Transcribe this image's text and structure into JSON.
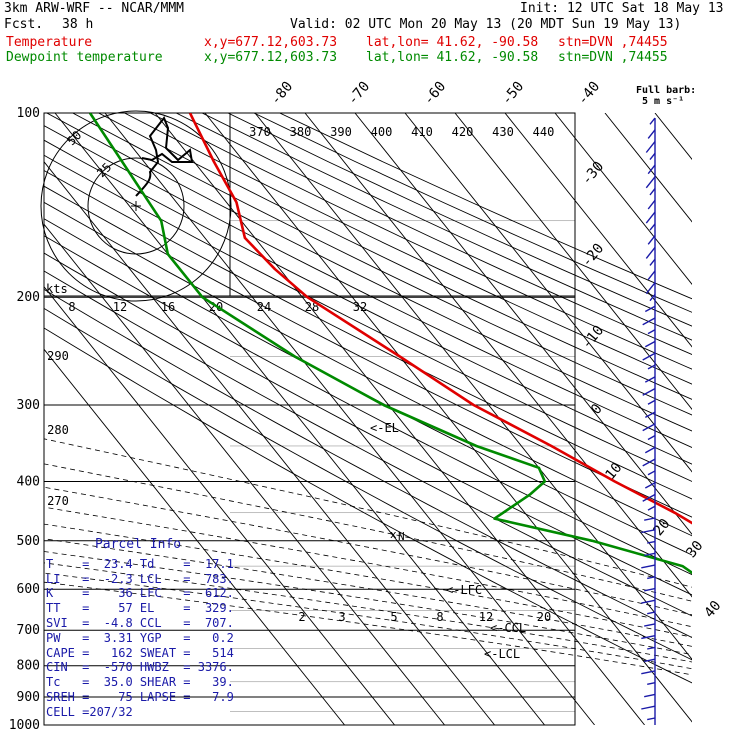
{
  "header": {
    "model": "3km ARW-WRF -- NCAR/MMM",
    "init": "Init: 12 UTC Sat 18 May 13",
    "fcst_label": "Fcst.",
    "fcst_value": "38 h",
    "valid": "Valid: 02 UTC Mon 20 May 13 (20 MDT Sun 19 May 13)",
    "temp_line": {
      "label": "Temperature",
      "xy": "x,y=677.12,603.73",
      "latlon": "lat,lon= 41.62, -90.58",
      "stn": "stn=DVN ,74455"
    },
    "dew_line": {
      "label": "Dewpoint temperature",
      "xy": "x,y=677.12,603.73",
      "latlon": "lat,lon= 41.62, -90.58",
      "stn": "stn=DVN ,74455"
    },
    "barb_key_1": "Full barb:",
    "barb_key_2": "5 m s⁻¹"
  },
  "colors": {
    "temperature": "#e00000",
    "dewpoint": "#008a00",
    "winds": "#1a1aa8",
    "parcel_panel": "#1a1aa8",
    "grid": "#000000"
  },
  "chart_data": {
    "type": "line",
    "ylabel": "",
    "xlabel": "",
    "y_scale": "log",
    "pressure_levels": [
      100,
      200,
      300,
      400,
      500,
      600,
      700,
      800,
      900,
      1000
    ],
    "isotherm_labels": [
      "-80",
      "-70",
      "-60",
      "-50",
      "-40",
      "-30",
      "-20",
      "-10",
      "0",
      "10",
      "20",
      "30",
      "40"
    ],
    "theta_top_labels": [
      "370",
      "380",
      "390",
      "400",
      "410",
      "420",
      "430",
      "440"
    ],
    "theta_left_labels": [
      "290",
      "280",
      "270"
    ],
    "mixing_ratio_labels": [
      "2",
      "3",
      "5",
      "8",
      "12",
      "20"
    ],
    "hodo_speed_labels": [
      "8",
      "12",
      "16",
      "20",
      "24",
      "28",
      "32"
    ],
    "hodo_ring_labels": [
      "50",
      "25"
    ],
    "hodo_unit": "kts",
    "level_markers": [
      "<-EL",
      "<-LFC",
      "<-CCL",
      "<-LCL"
    ],
    "series": [
      {
        "name": "Temperature",
        "color": "#e00000",
        "points": [
          [
            100,
            -53
          ],
          [
            120,
            -56
          ],
          [
            140,
            -58
          ],
          [
            160,
            -62
          ],
          [
            180,
            -61
          ],
          [
            200,
            -59
          ],
          [
            250,
            -50
          ],
          [
            300,
            -43
          ],
          [
            350,
            -34
          ],
          [
            400,
            -27
          ],
          [
            450,
            -20
          ],
          [
            500,
            -15
          ],
          [
            550,
            -9
          ],
          [
            600,
            -3
          ],
          [
            650,
            3
          ],
          [
            700,
            8
          ],
          [
            750,
            13
          ],
          [
            800,
            17
          ],
          [
            850,
            21
          ],
          [
            900,
            26
          ],
          [
            920,
            26
          ],
          [
            950,
            20
          ]
        ]
      },
      {
        "name": "Dewpoint temperature",
        "color": "#008a00",
        "points": [
          [
            100,
            -73
          ],
          [
            150,
            -76
          ],
          [
            170,
            -80
          ],
          [
            200,
            -80
          ],
          [
            250,
            -71
          ],
          [
            300,
            -61
          ],
          [
            350,
            -49
          ],
          [
            380,
            -40
          ],
          [
            400,
            -41
          ],
          [
            420,
            -46
          ],
          [
            460,
            -57
          ],
          [
            500,
            -41
          ],
          [
            550,
            -27
          ],
          [
            600,
            -24
          ],
          [
            650,
            -17
          ],
          [
            700,
            -4
          ],
          [
            750,
            6
          ],
          [
            800,
            10
          ],
          [
            850,
            10
          ],
          [
            900,
            6
          ],
          [
            930,
            8
          ],
          [
            950,
            14
          ],
          [
            970,
            17
          ]
        ]
      }
    ],
    "winds_barbs_count": 52
  },
  "parcel": {
    "title": "Parcel Info",
    "rows": [
      {
        "k1": "T",
        "v1": "23.4",
        "k2": "Td",
        "v2": "17.1"
      },
      {
        "k1": "LI",
        "v1": "-2.3",
        "k2": "LCL",
        "v2": "783."
      },
      {
        "k1": "K",
        "v1": "36",
        "k2": "LFC",
        "v2": "612."
      },
      {
        "k1": "TT",
        "v1": "57",
        "k2": "EL",
        "v2": "329."
      },
      {
        "k1": "SVI",
        "v1": "-4.8",
        "k2": "CCL",
        "v2": "707."
      },
      {
        "k1": "PW",
        "v1": "3.31",
        "k2": "YGP",
        "v2": "0.2"
      },
      {
        "k1": "CAPE",
        "v1": "162",
        "k2": "SWEAT",
        "v2": "514"
      },
      {
        "k1": "CIN",
        "v1": "-570",
        "k2": "HWBZ",
        "v2": "3376."
      },
      {
        "k1": "Tc",
        "v1": "35.0",
        "k2": "SHEAR",
        "v2": "39."
      },
      {
        "k1": "SREH",
        "v1": "75",
        "k2": "LAPSE",
        "v2": "7.9"
      },
      {
        "k1": "CELL",
        "v1": "207/32",
        "k2": "",
        "v2": ""
      }
    ]
  }
}
